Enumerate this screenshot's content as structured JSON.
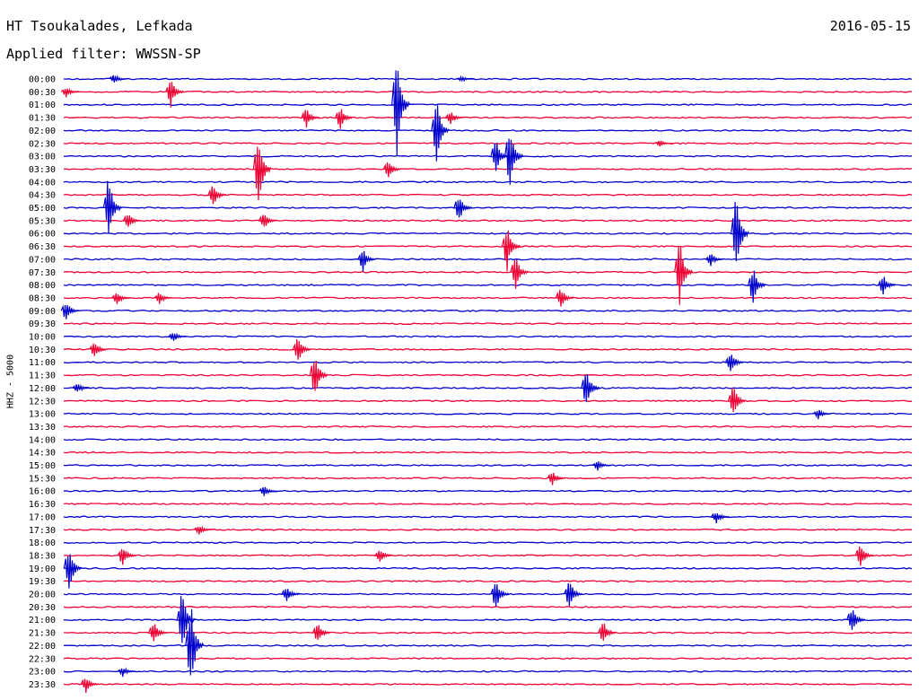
{
  "header": {
    "station": "HT Tsoukalades, Lefkada",
    "date": "2016-05-15",
    "filter_label": "Applied filter:",
    "filter_name": "WWSSN-SP"
  },
  "channel_label": "HHZ - 5000",
  "colors": {
    "odd_trace": "#0000cc",
    "even_trace": "#ee0033"
  },
  "chart_data": {
    "type": "line",
    "title": "HT Tsoukalades, Lefkada",
    "subtitle": "2016-05-15",
    "ylabel": "HHZ - 5000",
    "xlabel": "",
    "row_labels": [
      "00:00",
      "00:30",
      "01:00",
      "01:30",
      "02:00",
      "02:30",
      "03:00",
      "03:30",
      "04:00",
      "04:30",
      "05:00",
      "05:30",
      "06:00",
      "06:30",
      "07:00",
      "07:30",
      "08:00",
      "08:30",
      "09:00",
      "09:30",
      "10:00",
      "10:30",
      "11:00",
      "11:30",
      "12:00",
      "12:30",
      "13:00",
      "13:30",
      "14:00",
      "14:30",
      "15:00",
      "15:30",
      "16:00",
      "16:30",
      "17:00",
      "17:30",
      "18:00",
      "18:30",
      "19:00",
      "19:30",
      "20:00",
      "20:30",
      "21:00",
      "21:30",
      "22:00",
      "22:30",
      "23:00",
      "23:30"
    ],
    "row_minutes": 30,
    "series": [
      {
        "values": []
      }
    ],
    "events": [
      {
        "row": 0,
        "minute": 1.8,
        "amp": 6
      },
      {
        "row": 0,
        "minute": 14.1,
        "amp": 3
      },
      {
        "row": 1,
        "minute": 0.1,
        "amp": 6
      },
      {
        "row": 1,
        "minute": 3.8,
        "amp": 18
      },
      {
        "row": 2,
        "minute": 11.8,
        "amp": 60
      },
      {
        "row": 3,
        "minute": 8.6,
        "amp": 12
      },
      {
        "row": 3,
        "minute": 9.8,
        "amp": 14
      },
      {
        "row": 3,
        "minute": 13.7,
        "amp": 8
      },
      {
        "row": 4,
        "minute": 13.2,
        "amp": 40
      },
      {
        "row": 5,
        "minute": 21.1,
        "amp": 4
      },
      {
        "row": 6,
        "minute": 15.3,
        "amp": 20
      },
      {
        "row": 6,
        "minute": 15.8,
        "amp": 40
      },
      {
        "row": 7,
        "minute": 6.9,
        "amp": 45
      },
      {
        "row": 7,
        "minute": 11.5,
        "amp": 12
      },
      {
        "row": 9,
        "minute": 5.3,
        "amp": 14
      },
      {
        "row": 10,
        "minute": 1.6,
        "amp": 40
      },
      {
        "row": 10,
        "minute": 14.0,
        "amp": 16
      },
      {
        "row": 11,
        "minute": 2.3,
        "amp": 10
      },
      {
        "row": 11,
        "minute": 7.1,
        "amp": 10
      },
      {
        "row": 12,
        "minute": 23.8,
        "amp": 50
      },
      {
        "row": 13,
        "minute": 15.7,
        "amp": 28
      },
      {
        "row": 14,
        "minute": 10.6,
        "amp": 14
      },
      {
        "row": 14,
        "minute": 22.9,
        "amp": 8
      },
      {
        "row": 15,
        "minute": 16.0,
        "amp": 20
      },
      {
        "row": 15,
        "minute": 21.8,
        "amp": 40
      },
      {
        "row": 16,
        "minute": 24.4,
        "amp": 22
      },
      {
        "row": 16,
        "minute": 29.0,
        "amp": 12
      },
      {
        "row": 17,
        "minute": 1.9,
        "amp": 8
      },
      {
        "row": 17,
        "minute": 3.4,
        "amp": 8
      },
      {
        "row": 17,
        "minute": 17.6,
        "amp": 12
      },
      {
        "row": 18,
        "minute": 0.1,
        "amp": 12
      },
      {
        "row": 20,
        "minute": 3.9,
        "amp": 6
      },
      {
        "row": 21,
        "minute": 1.1,
        "amp": 10
      },
      {
        "row": 21,
        "minute": 8.3,
        "amp": 16
      },
      {
        "row": 22,
        "minute": 23.6,
        "amp": 14
      },
      {
        "row": 23,
        "minute": 8.9,
        "amp": 26
      },
      {
        "row": 24,
        "minute": 18.5,
        "amp": 24
      },
      {
        "row": 24,
        "minute": 0.5,
        "amp": 6
      },
      {
        "row": 25,
        "minute": 23.7,
        "amp": 20
      },
      {
        "row": 26,
        "minute": 26.7,
        "amp": 6
      },
      {
        "row": 30,
        "minute": 18.9,
        "amp": 6
      },
      {
        "row": 31,
        "minute": 17.3,
        "amp": 8
      },
      {
        "row": 32,
        "minute": 7.1,
        "amp": 6
      },
      {
        "row": 34,
        "minute": 23.1,
        "amp": 8
      },
      {
        "row": 35,
        "minute": 4.8,
        "amp": 6
      },
      {
        "row": 37,
        "minute": 2.1,
        "amp": 12
      },
      {
        "row": 37,
        "minute": 11.2,
        "amp": 8
      },
      {
        "row": 37,
        "minute": 28.2,
        "amp": 14
      },
      {
        "row": 38,
        "minute": 0.2,
        "amp": 28
      },
      {
        "row": 40,
        "minute": 7.9,
        "amp": 10
      },
      {
        "row": 40,
        "minute": 15.3,
        "amp": 18
      },
      {
        "row": 40,
        "minute": 17.9,
        "amp": 18
      },
      {
        "row": 42,
        "minute": 4.2,
        "amp": 36
      },
      {
        "row": 42,
        "minute": 27.9,
        "amp": 16
      },
      {
        "row": 43,
        "minute": 3.2,
        "amp": 14
      },
      {
        "row": 43,
        "minute": 9.0,
        "amp": 12
      },
      {
        "row": 43,
        "minute": 19.1,
        "amp": 14
      },
      {
        "row": 44,
        "minute": 4.5,
        "amp": 55
      },
      {
        "row": 46,
        "minute": 2.1,
        "amp": 6
      },
      {
        "row": 47,
        "minute": 0.8,
        "amp": 10
      }
    ]
  }
}
